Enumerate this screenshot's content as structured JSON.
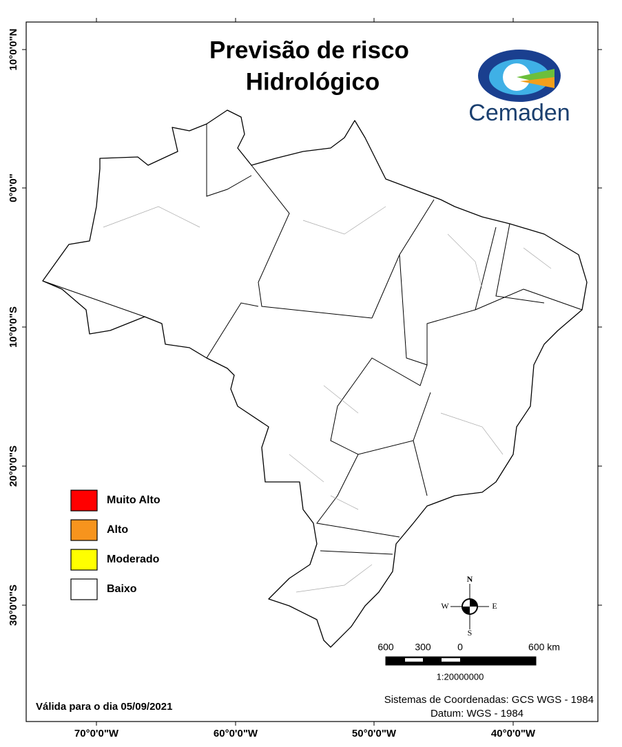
{
  "title": [
    "Previsão de risco",
    "Hidrológico"
  ],
  "logo": "Cemaden",
  "legend": {
    "items": [
      {
        "label": "Muito Alto",
        "color": "#ff0000"
      },
      {
        "label": "Alto",
        "color": "#f7941d"
      },
      {
        "label": "Moderado",
        "color": "#ffff00"
      },
      {
        "label": "Baixo",
        "color": "#ffffff"
      }
    ]
  },
  "compass": {
    "n": "N",
    "s": "S",
    "e": "E",
    "w": "W"
  },
  "scale_bar": {
    "labels": [
      "600",
      "300",
      "0",
      "600 km"
    ],
    "ratio": "1:20000000"
  },
  "coordinate_system": [
    "Sistemas de Coordenadas: GCS WGS - 1984",
    "Datum: WGS - 1984"
  ],
  "valid_date": "Válida para o dia 05/09/2021",
  "lat_labels": [
    "10°0'0\"N",
    "0°0'0\"",
    "10°0'0\"S",
    "20°0'0\"S",
    "30°0'0\"S"
  ],
  "lon_labels": [
    "70°0'0\"W",
    "60°0'0\"W",
    "50°0'0\"W",
    "40°0'0\"W"
  ]
}
